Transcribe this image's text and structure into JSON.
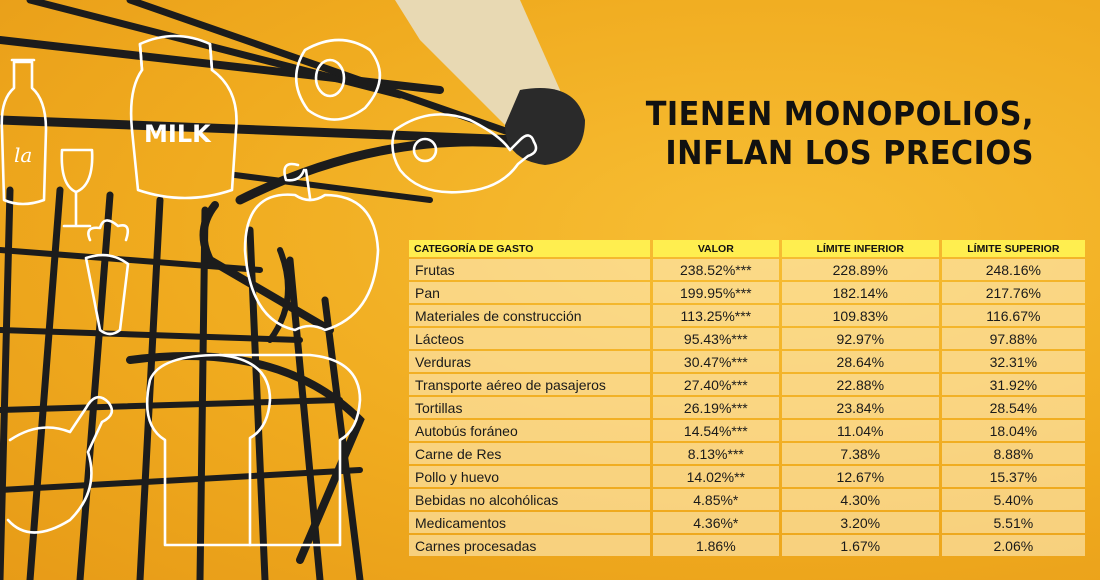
{
  "headline": {
    "line1": "TIENEN MONOPOLIOS,",
    "line2": "INFLAN LOS PRECIOS"
  },
  "doodles": {
    "milk_label": "MILK",
    "bottle_label": "la"
  },
  "table": {
    "headers": [
      "CATEGORÍA DE GASTO",
      "VALOR",
      "LÍMITE INFERIOR",
      "LÍMITE SUPERIOR"
    ],
    "rows": [
      [
        "Frutas",
        "238.52%***",
        "228.89%",
        "248.16%"
      ],
      [
        "Pan",
        "199.95%***",
        "182.14%",
        "217.76%"
      ],
      [
        "Materiales de construcción",
        "113.25%***",
        "109.83%",
        "116.67%"
      ],
      [
        "Lácteos",
        "95.43%***",
        "92.97%",
        "97.88%"
      ],
      [
        "Verduras",
        "30.47%***",
        "28.64%",
        "32.31%"
      ],
      [
        "Transporte aéreo de pasajeros",
        "27.40%***",
        "22.88%",
        "31.92%"
      ],
      [
        "Tortillas",
        "26.19%***",
        "23.84%",
        "28.54%"
      ],
      [
        "Autobús foráneo",
        "14.54%***",
        "11.04%",
        "18.04%"
      ],
      [
        "Carne de Res",
        "8.13%***",
        "7.38%",
        "8.88%"
      ],
      [
        "Pollo y huevo",
        "14.02%**",
        "12.67%",
        "15.37%"
      ],
      [
        "Bebidas no alcohólicas",
        "4.85%*",
        "4.30%",
        "5.40%"
      ],
      [
        "Medicamentos",
        "4.36%*",
        "3.20%",
        "5.51%"
      ],
      [
        "Carnes procesadas",
        "1.86%",
        "1.67%",
        "2.06%"
      ]
    ]
  },
  "chart_data": {
    "type": "table",
    "columns": [
      "CATEGORÍA DE GASTO",
      "VALOR",
      "LÍMITE INFERIOR",
      "LÍMITE SUPERIOR"
    ],
    "rows": [
      {
        "category": "Frutas",
        "value": 238.52,
        "significance": "***",
        "lower": 228.89,
        "upper": 248.16
      },
      {
        "category": "Pan",
        "value": 199.95,
        "significance": "***",
        "lower": 182.14,
        "upper": 217.76
      },
      {
        "category": "Materiales de construcción",
        "value": 113.25,
        "significance": "***",
        "lower": 109.83,
        "upper": 116.67
      },
      {
        "category": "Lácteos",
        "value": 95.43,
        "significance": "***",
        "lower": 92.97,
        "upper": 97.88
      },
      {
        "category": "Verduras",
        "value": 30.47,
        "significance": "***",
        "lower": 28.64,
        "upper": 32.31
      },
      {
        "category": "Transporte aéreo de pasajeros",
        "value": 27.4,
        "significance": "***",
        "lower": 22.88,
        "upper": 31.92
      },
      {
        "category": "Tortillas",
        "value": 26.19,
        "significance": "***",
        "lower": 23.84,
        "upper": 28.54
      },
      {
        "category": "Autobús foráneo",
        "value": 14.54,
        "significance": "***",
        "lower": 11.04,
        "upper": 18.04
      },
      {
        "category": "Carne de Res",
        "value": 8.13,
        "significance": "***",
        "lower": 7.38,
        "upper": 8.88
      },
      {
        "category": "Pollo y huevo",
        "value": 14.02,
        "significance": "**",
        "lower": 12.67,
        "upper": 15.37
      },
      {
        "category": "Bebidas no alcohólicas",
        "value": 4.85,
        "significance": "*",
        "lower": 4.3,
        "upper": 5.4
      },
      {
        "category": "Medicamentos",
        "value": 4.36,
        "significance": "*",
        "lower": 3.2,
        "upper": 5.51
      },
      {
        "category": "Carnes procesadas",
        "value": 1.86,
        "significance": "",
        "lower": 1.67,
        "upper": 2.06
      }
    ]
  },
  "colors": {
    "background": "#f0ab1f",
    "header_fill": "#ffee4f",
    "cell_fill": "#fbe4a4",
    "text": "#111111",
    "cart_frame": "#1c1c1c",
    "handle": "#e8d9b3"
  }
}
